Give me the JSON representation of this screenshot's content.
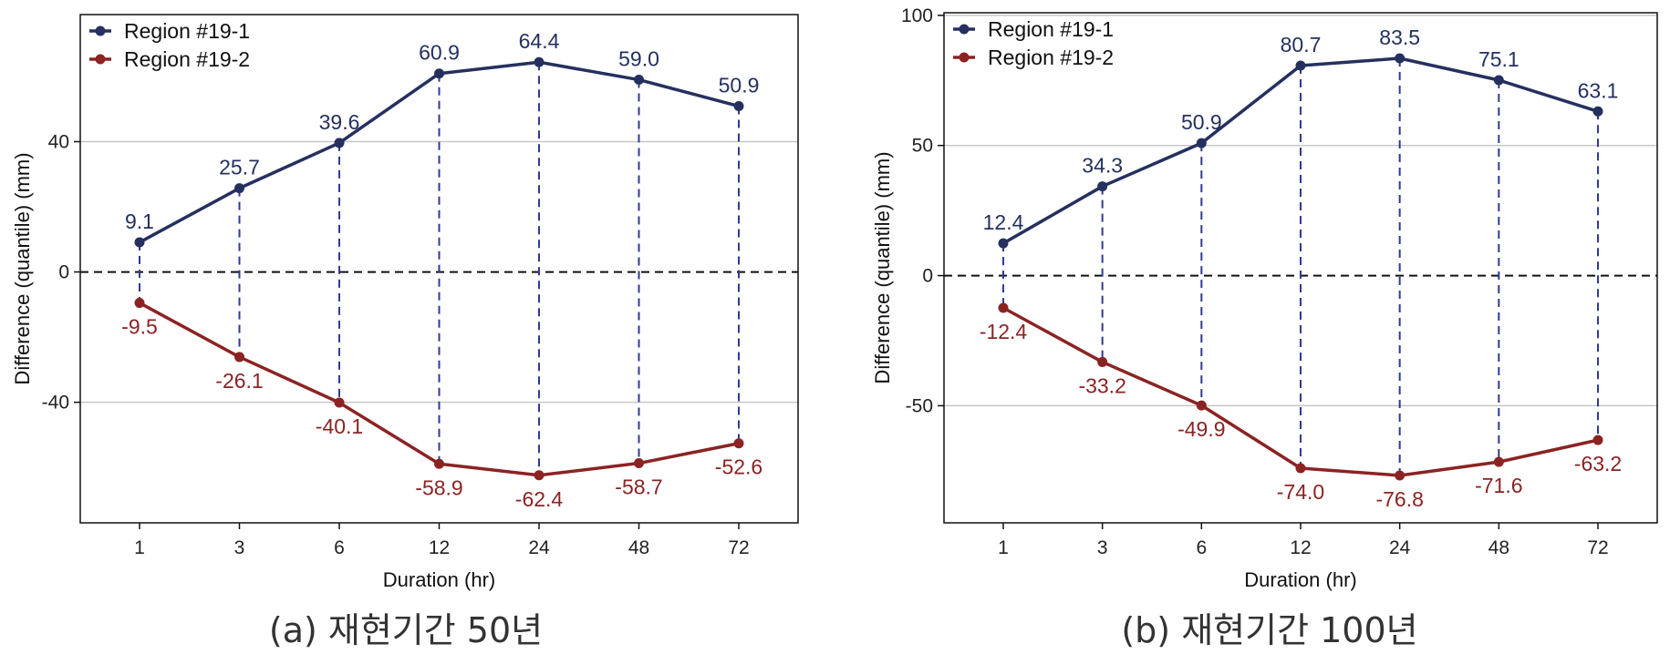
{
  "chart_data": [
    {
      "type": "line",
      "caption": "(a) 재현기간 50년",
      "xlabel": "Duration (hr)",
      "ylabel": "Difference (quantile) (mm)",
      "categories": [
        "1",
        "3",
        "6",
        "12",
        "24",
        "48",
        "72"
      ],
      "yticks": [
        -40,
        0,
        40
      ],
      "ylim": [
        -77,
        79
      ],
      "grid": "horizontal",
      "zero_line": "dashed",
      "vertical_dashed_connectors": true,
      "legend": "top-left",
      "series": [
        {
          "name": "Region #19-1",
          "color": "#25305f",
          "values": [
            9.1,
            25.7,
            39.6,
            60.9,
            64.4,
            59.0,
            50.9
          ],
          "labels": [
            "9.1",
            "25.7",
            "39.6",
            "60.9",
            "64.4",
            "59.0",
            "50.9"
          ]
        },
        {
          "name": "Region #19-2",
          "color": "#8b2323",
          "values": [
            -9.5,
            -26.1,
            -40.1,
            -58.9,
            -62.4,
            -58.7,
            -52.6
          ],
          "labels": [
            "-9.5",
            "-26.1",
            "-40.1",
            "-58.9",
            "-62.4",
            "-58.7",
            "-52.6"
          ]
        }
      ]
    },
    {
      "type": "line",
      "caption": "(b) 재현기간 100년",
      "xlabel": "Duration (hr)",
      "ylabel": "Difference (quantile) (mm)",
      "categories": [
        "1",
        "3",
        "6",
        "12",
        "24",
        "48",
        "72"
      ],
      "yticks": [
        -50,
        0,
        50,
        100
      ],
      "ylim": [
        -95,
        101
      ],
      "grid": "horizontal",
      "zero_line": "dashed",
      "vertical_dashed_connectors": true,
      "legend": "top-left",
      "series": [
        {
          "name": "Region #19-1",
          "color": "#25305f",
          "values": [
            12.4,
            34.3,
            50.9,
            80.7,
            83.5,
            75.1,
            63.1
          ],
          "labels": [
            "12.4",
            "34.3",
            "50.9",
            "80.7",
            "83.5",
            "75.1",
            "63.1"
          ]
        },
        {
          "name": "Region #19-2",
          "color": "#8b2323",
          "values": [
            -12.4,
            -33.2,
            -49.9,
            -74.0,
            -76.8,
            -71.6,
            -63.2
          ],
          "labels": [
            "-12.4",
            "-33.2",
            "-49.9",
            "-74.0",
            "-76.8",
            "-71.6",
            "-63.2"
          ]
        }
      ]
    }
  ]
}
